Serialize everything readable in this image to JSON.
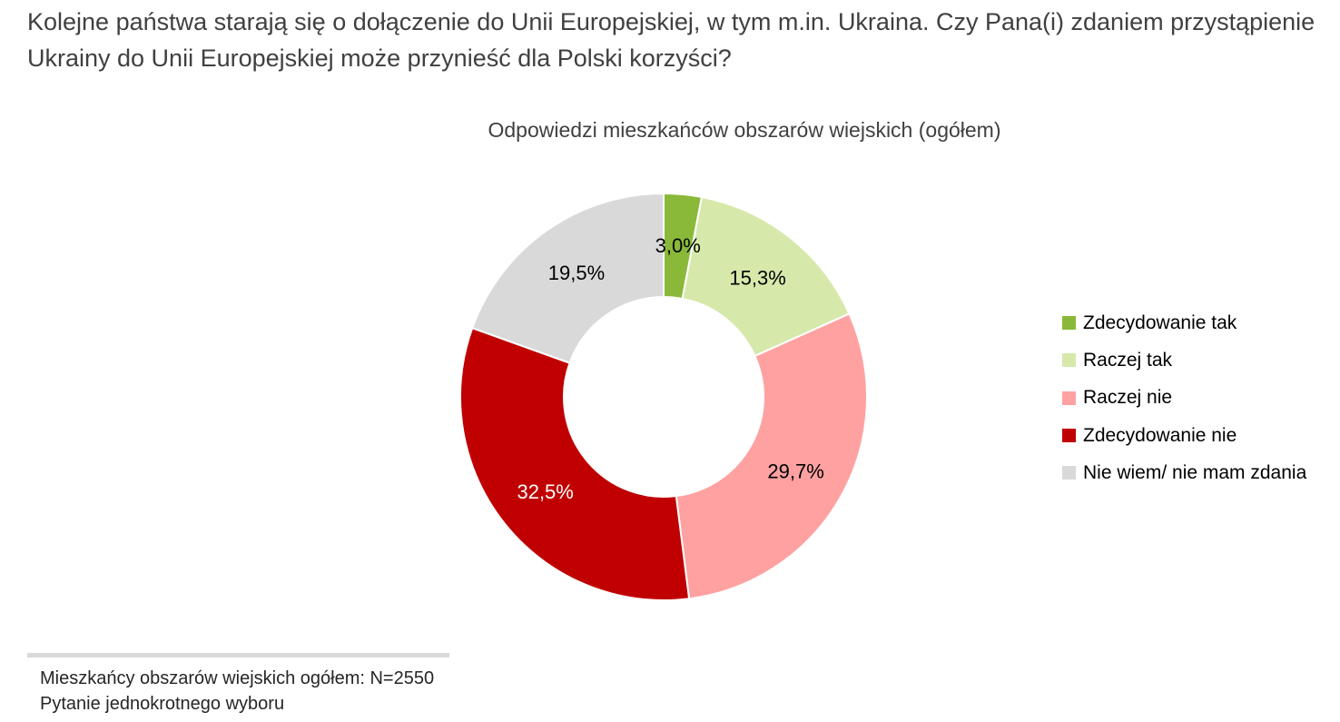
{
  "question": "Kolejne państwa starają się o dołączenie do Unii Europejskiej, w tym m.in. Ukraina. Czy Pana(i) zdaniem przystąpienie Ukrainy do Unii Europejskiej może przynieść dla Polski korzyści?",
  "chart_data": {
    "type": "pie",
    "subtype": "donut",
    "title": "Odpowiedzi mieszkańców obszarów wiejskich (ogółem)",
    "categories": [
      "Zdecydowanie tak",
      "Raczej tak",
      "Raczej nie",
      "Zdecydowanie nie",
      "Nie wiem/ nie mam zdania"
    ],
    "values": [
      3.0,
      15.3,
      29.7,
      32.5,
      19.5
    ],
    "value_labels": [
      "3,0%",
      "15,3%",
      "29,7%",
      "32,5%",
      "19,5%"
    ],
    "colors": [
      "#8ab93a",
      "#d6e9ab",
      "#ffa1a1",
      "#c00000",
      "#d9d9d9"
    ],
    "label_colors": [
      "#000000",
      "#000000",
      "#000000",
      "#ffffff",
      "#000000"
    ],
    "legend_position": "right"
  },
  "notes": [
    "Mieszkańcy obszarów wiejskich ogółem: N=2550",
    "Pytanie jednokrotnego wyboru"
  ]
}
